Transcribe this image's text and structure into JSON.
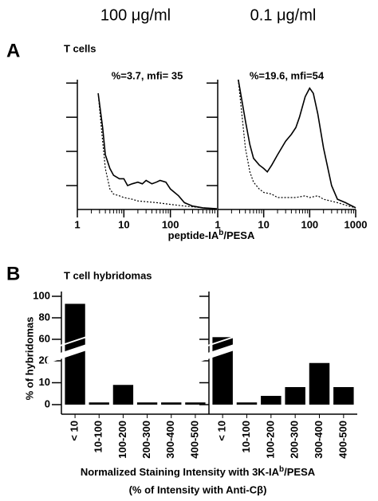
{
  "column_headers": [
    "100 μg/ml",
    "0.1 μg/ml"
  ],
  "panels": [
    {
      "label": "A",
      "title": "T cells"
    },
    {
      "label": "B",
      "title": "T cell hybridomas"
    }
  ],
  "chart_data": [
    {
      "type": "line",
      "title": "%=3.7, mfi= 35",
      "xlabel": [
        "peptide-IA",
        "b",
        "/PESA"
      ],
      "xlim": [
        1,
        1000
      ],
      "xticks": [
        1,
        10,
        100
      ],
      "xlog": true,
      "ylim": [
        0,
        3.8
      ],
      "yticks": [
        0.7,
        1.7,
        2.7,
        3.7
      ],
      "show_ytick_labels": false,
      "series": [
        {
          "style": "solid",
          "color": "#000000",
          "x": [
            2.8,
            3.5,
            4,
            5,
            6,
            8,
            10,
            12,
            15,
            20,
            25,
            30,
            40,
            50,
            60,
            80,
            100,
            150,
            200,
            300,
            500,
            1000
          ],
          "values": [
            3.4,
            2.4,
            1.6,
            1.2,
            1.0,
            0.9,
            0.9,
            0.7,
            0.75,
            0.8,
            0.75,
            0.85,
            0.75,
            0.8,
            0.85,
            0.8,
            0.6,
            0.4,
            0.2,
            0.1,
            0.05,
            0.02
          ]
        },
        {
          "style": "dashed",
          "color": "#000000",
          "x": [
            2.8,
            3.5,
            4,
            5,
            6,
            8,
            10,
            15,
            20,
            50,
            100,
            200,
            500,
            1000
          ],
          "values": [
            3.4,
            2.0,
            1.2,
            0.6,
            0.45,
            0.4,
            0.35,
            0.3,
            0.25,
            0.2,
            0.15,
            0.1,
            0.05,
            0.02
          ]
        }
      ]
    },
    {
      "type": "line",
      "title": "%=19.6, mfi=54",
      "xlim": [
        1,
        1000
      ],
      "xticks": [
        1,
        10,
        100,
        1000
      ],
      "xlog": true,
      "ylim": [
        0,
        3.8
      ],
      "yticks": [
        0.7,
        1.7,
        2.7,
        3.7
      ],
      "show_ytick_labels": false,
      "series": [
        {
          "style": "solid",
          "color": "#000000",
          "x": [
            2.8,
            4,
            5,
            6,
            8,
            10,
            12,
            15,
            20,
            30,
            40,
            50,
            60,
            80,
            100,
            120,
            150,
            200,
            300,
            400,
            600,
            1000
          ],
          "values": [
            3.8,
            2.6,
            1.9,
            1.5,
            1.3,
            1.2,
            1.1,
            1.3,
            1.6,
            2.0,
            2.2,
            2.4,
            2.7,
            3.3,
            3.55,
            3.4,
            2.8,
            1.8,
            0.7,
            0.3,
            0.2,
            0.05
          ]
        },
        {
          "style": "dashed",
          "color": "#000000",
          "x": [
            2.8,
            4,
            5,
            6,
            8,
            10,
            15,
            20,
            50,
            80,
            100,
            150,
            200,
            400,
            700,
            1000
          ],
          "values": [
            3.8,
            1.8,
            1.1,
            0.8,
            0.6,
            0.5,
            0.45,
            0.35,
            0.35,
            0.4,
            0.35,
            0.4,
            0.3,
            0.2,
            0.1,
            0.05
          ]
        }
      ]
    },
    {
      "type": "bar",
      "ylabel": "% of hybridomas",
      "xlabel": [
        "Normalized Staining Intensity with 3K-IA",
        "b",
        "/PESA"
      ],
      "xlabel2": "(% of Intensity with Anti-Cβ)",
      "categories": [
        "< 10",
        "10-100",
        "100-200",
        "200-300",
        "300-400",
        "400-500"
      ],
      "values": [
        93,
        1,
        9,
        1,
        1,
        1
      ],
      "color": "#000000",
      "ylim": [
        0,
        100
      ],
      "ybreak": [
        20,
        60
      ],
      "yticks": [
        0,
        10,
        20,
        60,
        80,
        100
      ],
      "show_ytick_labels": true
    },
    {
      "type": "bar",
      "categories": [
        "< 10",
        "10-100",
        "100-200",
        "200-300",
        "300-400",
        "400-500"
      ],
      "values": [
        62,
        1,
        4,
        8,
        19,
        8
      ],
      "color": "#000000",
      "ylim": [
        0,
        100
      ],
      "ybreak": [
        20,
        60
      ],
      "yticks": [
        0,
        10,
        20,
        60,
        80,
        100
      ],
      "show_ytick_labels": false
    }
  ]
}
